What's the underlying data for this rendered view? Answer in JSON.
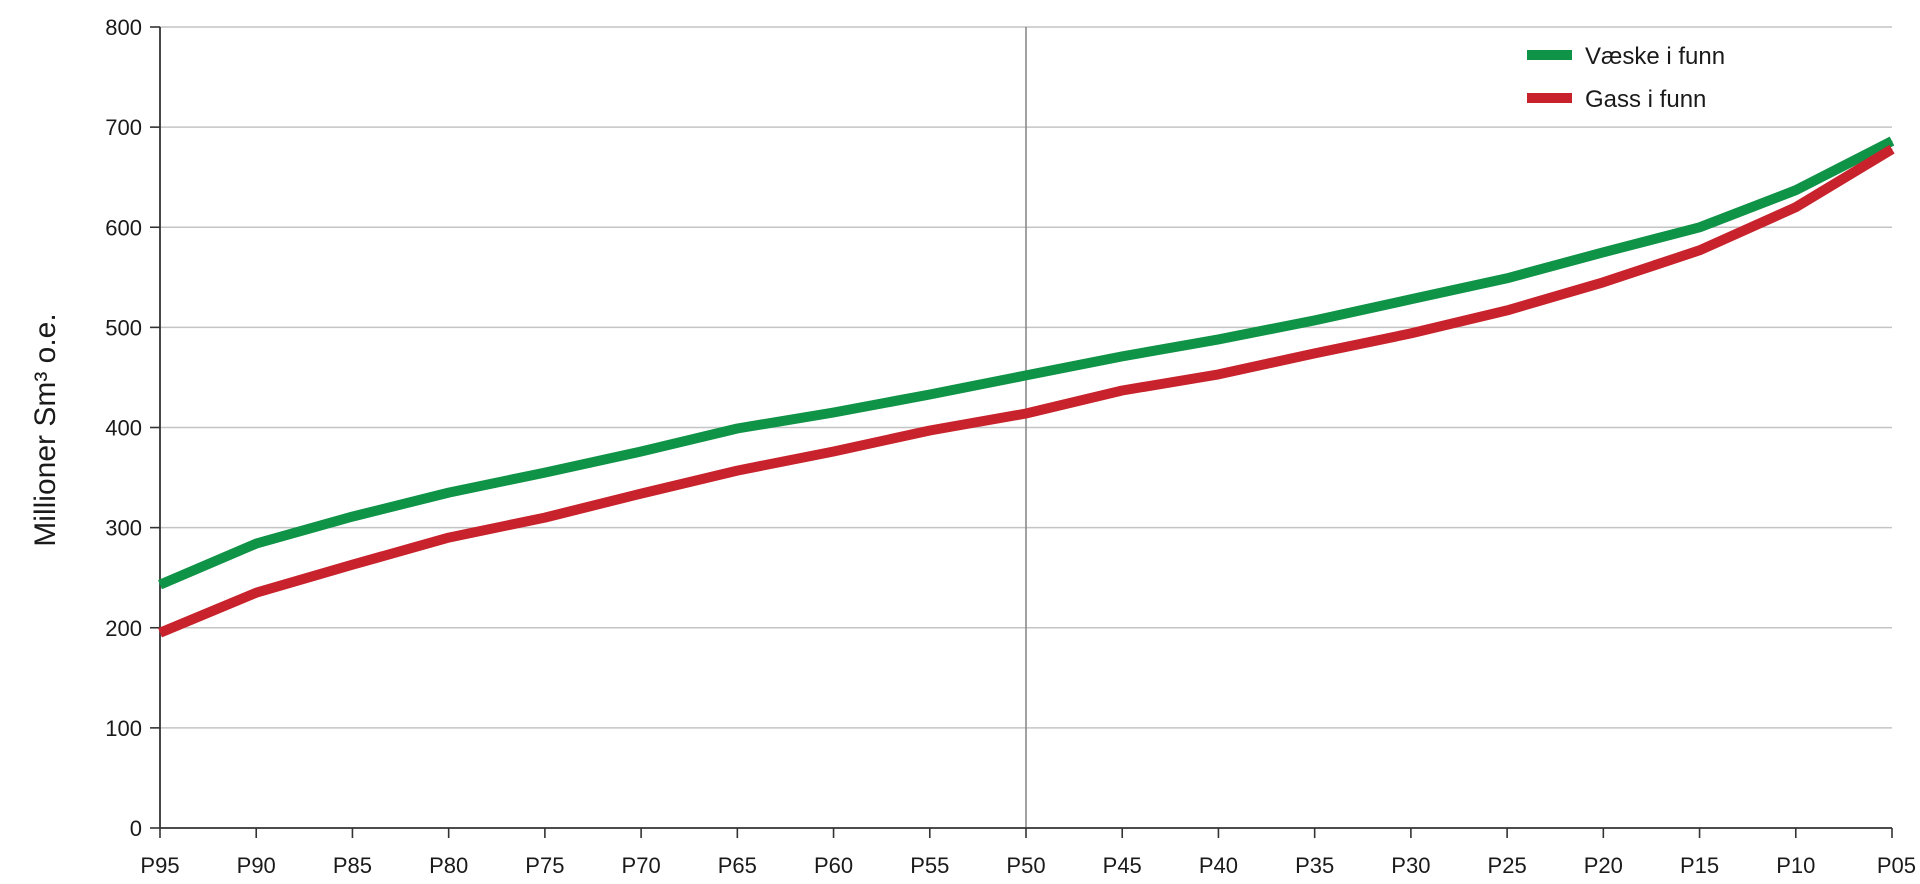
{
  "chart_data": {
    "type": "line",
    "title": "",
    "xlabel": "",
    "ylabel": "Millioner  Sm³ o.e.",
    "ylim": [
      0,
      800
    ],
    "y_ticks": [
      0,
      100,
      200,
      300,
      400,
      500,
      600,
      700,
      800
    ],
    "categories": [
      "P95",
      "P90",
      "P85",
      "P80",
      "P75",
      "P70",
      "P65",
      "P60",
      "P55",
      "P50",
      "P45",
      "P40",
      "P35",
      "P30",
      "P25",
      "P20",
      "P15",
      "P10",
      "P05"
    ],
    "reference_line": "P50",
    "grid": true,
    "legend_position": "top-right",
    "series": [
      {
        "name": "Væske i funn",
        "color": "#0f9347",
        "values": [
          243,
          284,
          311,
          335,
          355,
          376,
          399,
          415,
          433,
          452,
          471,
          488,
          507,
          528,
          549,
          575,
          600,
          637,
          686
        ]
      },
      {
        "name": "Gass i funn",
        "color": "#c8232c",
        "values": [
          195,
          235,
          263,
          290,
          310,
          334,
          357,
          376,
          397,
          414,
          437,
          453,
          474,
          494,
          517,
          545,
          577,
          620,
          678
        ]
      }
    ]
  }
}
